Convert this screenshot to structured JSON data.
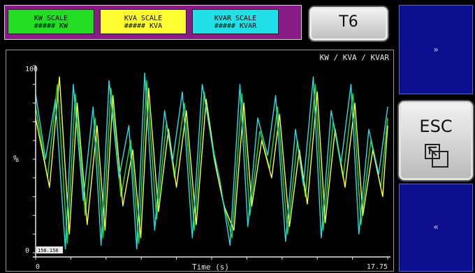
{
  "legend": {
    "kw": {
      "title": "KW SCALE",
      "value": "##### KW",
      "color": "#22dd22"
    },
    "kva": {
      "title": "KVA SCALE",
      "value": "##### KVA",
      "color": "#ffff33"
    },
    "kvar": {
      "title": "KVAR SCALE",
      "value": "##### KVAR",
      "color": "#22e0e8"
    }
  },
  "buttons": {
    "t6": "T6",
    "forward": "»",
    "esc": "ESC",
    "back": "«"
  },
  "chart_data": {
    "type": "line",
    "title": "KW / KVA / KVAR",
    "xlabel": "Time (s)",
    "ylabel": "%",
    "xlim": [
      0,
      17.75
    ],
    "ylim": [
      0,
      100
    ],
    "x_tick_labels": [
      "0",
      "17.75"
    ],
    "y_tick_labels": [
      "0",
      "100"
    ],
    "cursor_readout": "158.158",
    "colors": {
      "kw": "#22dd22",
      "kva": "#ffff33",
      "kvar": "#22e0e8"
    },
    "series": [
      {
        "key": "kw",
        "x": [
          0.0,
          0.6,
          1.1,
          1.6,
          2.0,
          2.5,
          3.0,
          3.4,
          3.8,
          4.3,
          4.8,
          5.2,
          5.6,
          6.1,
          6.6,
          7.0,
          7.5,
          8.0,
          8.5,
          9.0,
          9.4,
          9.9,
          10.4,
          10.8,
          11.3,
          11.8,
          12.2,
          12.7,
          13.2,
          13.6,
          14.1,
          14.5,
          15.0,
          15.5,
          16.0,
          16.4,
          16.9,
          17.4,
          17.75
        ],
        "values": [
          78,
          40,
          90,
          5,
          85,
          20,
          72,
          8,
          88,
          30,
          60,
          5,
          92,
          18,
          70,
          40,
          80,
          12,
          86,
          50,
          30,
          8,
          85,
          20,
          65,
          45,
          78,
          10,
          60,
          30,
          90,
          12,
          70,
          40,
          85,
          15,
          60,
          35,
          72
        ]
      },
      {
        "key": "kva",
        "x": [
          0.0,
          0.7,
          1.2,
          1.7,
          2.1,
          2.6,
          3.1,
          3.5,
          3.9,
          4.4,
          4.9,
          5.3,
          5.7,
          6.2,
          6.7,
          7.1,
          7.6,
          8.1,
          8.6,
          9.1,
          9.5,
          10.0,
          10.5,
          10.9,
          11.4,
          11.9,
          12.3,
          12.8,
          13.3,
          13.7,
          14.2,
          14.6,
          15.1,
          15.6,
          16.1,
          16.5,
          17.0,
          17.5,
          17.75
        ],
        "values": [
          72,
          35,
          94,
          10,
          80,
          15,
          68,
          12,
          84,
          25,
          55,
          8,
          88,
          22,
          66,
          35,
          76,
          15,
          82,
          45,
          25,
          12,
          80,
          25,
          60,
          40,
          74,
          14,
          55,
          26,
          86,
          16,
          66,
          35,
          80,
          20,
          55,
          30,
          68
        ]
      },
      {
        "key": "kvar",
        "x": [
          0.0,
          0.5,
          1.0,
          1.5,
          1.9,
          2.4,
          2.9,
          3.3,
          3.7,
          4.2,
          4.7,
          5.1,
          5.5,
          6.0,
          6.5,
          6.9,
          7.4,
          7.9,
          8.4,
          8.9,
          9.3,
          9.8,
          10.3,
          10.7,
          11.2,
          11.7,
          12.1,
          12.6,
          13.1,
          13.5,
          14.0,
          14.4,
          14.9,
          15.4,
          15.9,
          16.3,
          16.8,
          17.3,
          17.75
        ],
        "values": [
          85,
          50,
          82,
          2,
          90,
          28,
          78,
          4,
          92,
          40,
          68,
          2,
          96,
          12,
          76,
          48,
          86,
          8,
          90,
          58,
          38,
          4,
          90,
          14,
          72,
          52,
          84,
          6,
          66,
          36,
          94,
          8,
          76,
          48,
          90,
          10,
          66,
          42,
          78
        ]
      }
    ]
  }
}
